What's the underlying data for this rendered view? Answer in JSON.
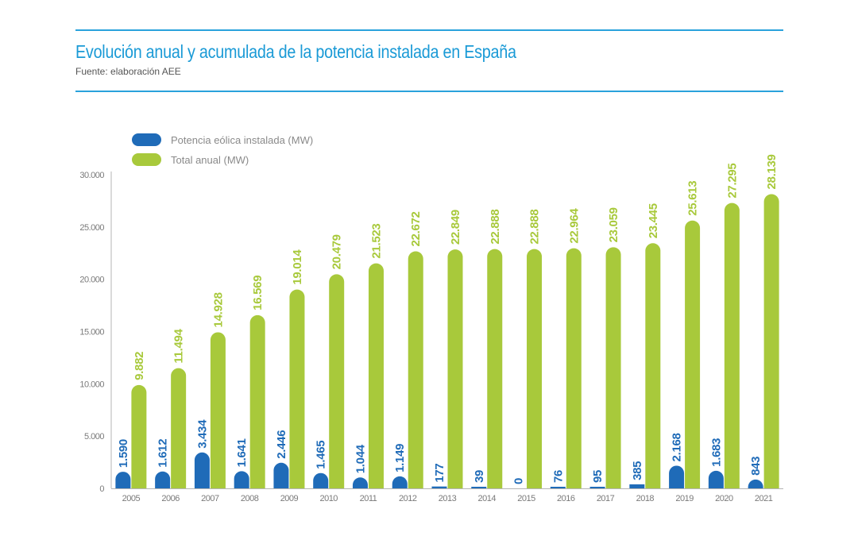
{
  "header": {
    "title": "Evolución anual y acumulada de la potencia instalada en España",
    "subtitle": "Fuente: elaboración AEE"
  },
  "colors": {
    "accent_rule": "#2aa2dc",
    "title": "#1a9ad6",
    "series_blue": "#1f6bb8",
    "series_green": "#a8c93b"
  },
  "chart_data": {
    "type": "bar",
    "title": "Evolución anual y acumulada de la potencia instalada en España",
    "subtitle": "Fuente: elaboración AEE",
    "xlabel": "",
    "ylabel": "",
    "ylim": [
      0,
      30000
    ],
    "yticks": [
      0,
      5000,
      10000,
      15000,
      20000,
      25000,
      30000
    ],
    "ytick_labels": [
      "0",
      "5.000",
      "10.000",
      "15.000",
      "20.000",
      "25.000",
      "30.000"
    ],
    "grid": false,
    "legend_position": "top-left",
    "categories": [
      "2005",
      "2006",
      "2007",
      "2008",
      "2009",
      "2010",
      "2011",
      "2012",
      "2013",
      "2014",
      "2015",
      "2016",
      "2017",
      "2018",
      "2019",
      "2020",
      "2021"
    ],
    "series": [
      {
        "name": "Potencia eólica instalada (MW)",
        "color": "#1f6bb8",
        "values": [
          1590,
          1612,
          3434,
          1641,
          2446,
          1465,
          1044,
          1149,
          177,
          39,
          0,
          76,
          95,
          385,
          2168,
          1683,
          843
        ],
        "labels": [
          "1.590",
          "1.612",
          "3.434",
          "1.641",
          "2.446",
          "1.465",
          "1.044",
          "1.149",
          "177",
          "39",
          "0",
          "76",
          "95",
          "385",
          "2.168",
          "1.683",
          "843"
        ]
      },
      {
        "name": "Total anual (MW)",
        "color": "#a8c93b",
        "values": [
          9882,
          11494,
          14928,
          16569,
          19014,
          20479,
          21523,
          22672,
          22849,
          22888,
          22888,
          22964,
          23059,
          23445,
          25613,
          27295,
          28139
        ],
        "labels": [
          "9.882",
          "11.494",
          "14.928",
          "16.569",
          "19.014",
          "20.479",
          "21.523",
          "22.672",
          "22.849",
          "22.888",
          "22.888",
          "22.964",
          "23.059",
          "23.445",
          "25.613",
          "27.295",
          "28.139"
        ]
      }
    ]
  }
}
